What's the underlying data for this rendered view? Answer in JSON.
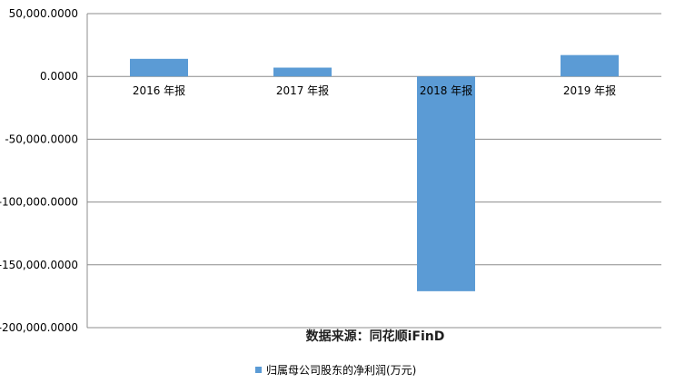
{
  "chart_data": {
    "type": "bar",
    "categories": [
      "2016 年报",
      "2017 年报",
      "2018 年报",
      "2019 年报"
    ],
    "series": [
      {
        "name": "归属母公司股东的净利润(万元)",
        "values": [
          14000,
          7000,
          -171000,
          17000
        ],
        "color": "#5B9BD5"
      }
    ],
    "y_ticks": [
      "50,000.0000",
      "0.0000",
      "-50,000.0000",
      "-100,000.0000",
      "-150,000.0000",
      "-200,000.0000"
    ],
    "ylim": [
      -200000,
      50000
    ],
    "grid": true,
    "legend": "bottom",
    "annotation": "数据来源：同花顺iFinD"
  }
}
